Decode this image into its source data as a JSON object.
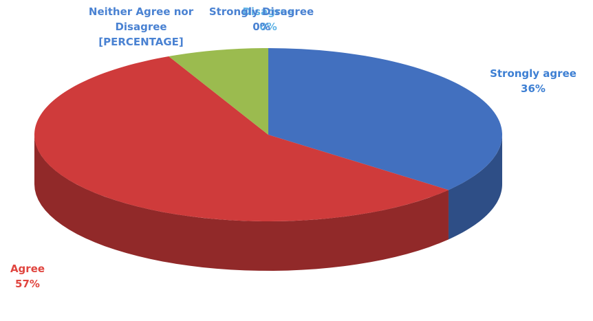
{
  "chart_data": {
    "type": "pie",
    "categories": [
      "Strongly agree",
      "Agree",
      "Neither Agree nor Disagree",
      "Disagree",
      "Strongly Disagree"
    ],
    "values": [
      36,
      57,
      7,
      0,
      0
    ],
    "value_labels": [
      "36%",
      "57%",
      "[PERCENTAGE]",
      "0%",
      "0%"
    ],
    "colors": [
      "#4270bf",
      "#cf3b3b",
      "#9bbb4f",
      "#8064a2",
      "#4bacc6"
    ],
    "label_colors": [
      "#3d7fd3",
      "#e0453f",
      "#4a82d2",
      "#5fb3e6",
      "#4a82d2"
    ]
  }
}
